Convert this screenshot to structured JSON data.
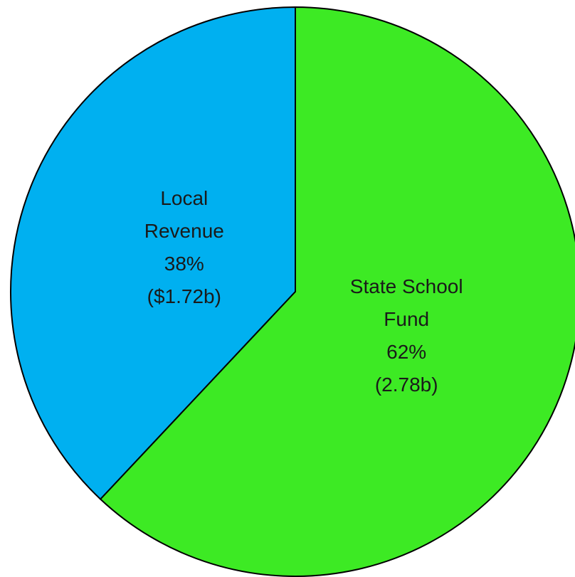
{
  "chart_data": {
    "type": "pie",
    "categories": [
      "Local Revenue",
      "State School Fund"
    ],
    "values": [
      38,
      62
    ],
    "value_labels": [
      "38%",
      "62%"
    ],
    "amount_labels": [
      "($1.72b)",
      "(2.78b)"
    ],
    "colors": [
      "#00b0f0",
      "#3dea24"
    ]
  }
}
